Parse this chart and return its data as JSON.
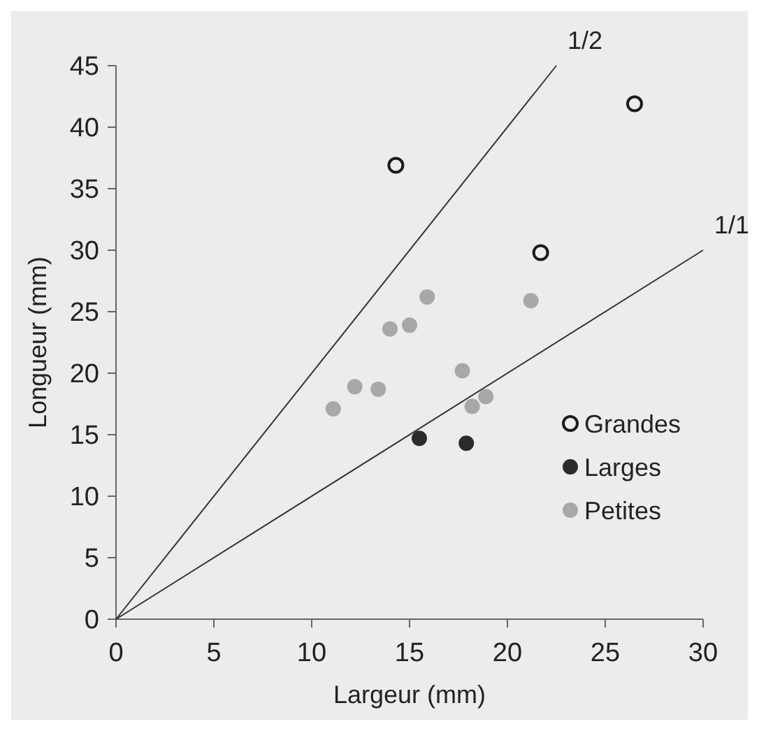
{
  "chart_data": {
    "type": "scatter",
    "xlabel": "Largeur (mm)",
    "ylabel": "Longueur (mm)",
    "xlim": [
      0,
      30
    ],
    "xticks": [
      0,
      5,
      10,
      15,
      20,
      25,
      30
    ],
    "ylim": [
      0,
      45
    ],
    "yticks": [
      0,
      5,
      10,
      15,
      20,
      25,
      30,
      35,
      40,
      45
    ],
    "grid": false,
    "legend": "right",
    "marker": "circle",
    "series": [
      {
        "name": "1/2",
        "type": "line",
        "color": "#333333",
        "marker": "none",
        "x": [
          0,
          22.5
        ],
        "values": [
          0,
          45
        ]
      },
      {
        "name": "1/1",
        "type": "line",
        "color": "#333333",
        "marker": "none",
        "x": [
          0,
          30
        ],
        "values": [
          0,
          30
        ]
      },
      {
        "name": "Grandes",
        "color": "#1a1a1a",
        "marker": "circle-open",
        "x": [
          14.3,
          26.5,
          21.7
        ],
        "values": [
          36.9,
          41.9,
          29.8
        ]
      },
      {
        "name": "Larges",
        "color": "#2b2b2b",
        "x": [
          15.5,
          17.9
        ],
        "values": [
          14.7,
          14.3
        ]
      },
      {
        "name": "Petites",
        "color": "#a8a8a8",
        "x": [
          11.1,
          12.2,
          13.4,
          14.0,
          15.0,
          15.9,
          17.7,
          18.2,
          18.9,
          21.2
        ],
        "values": [
          17.1,
          18.9,
          18.7,
          23.6,
          23.9,
          26.2,
          20.2,
          17.3,
          18.1,
          25.9
        ]
      }
    ]
  }
}
